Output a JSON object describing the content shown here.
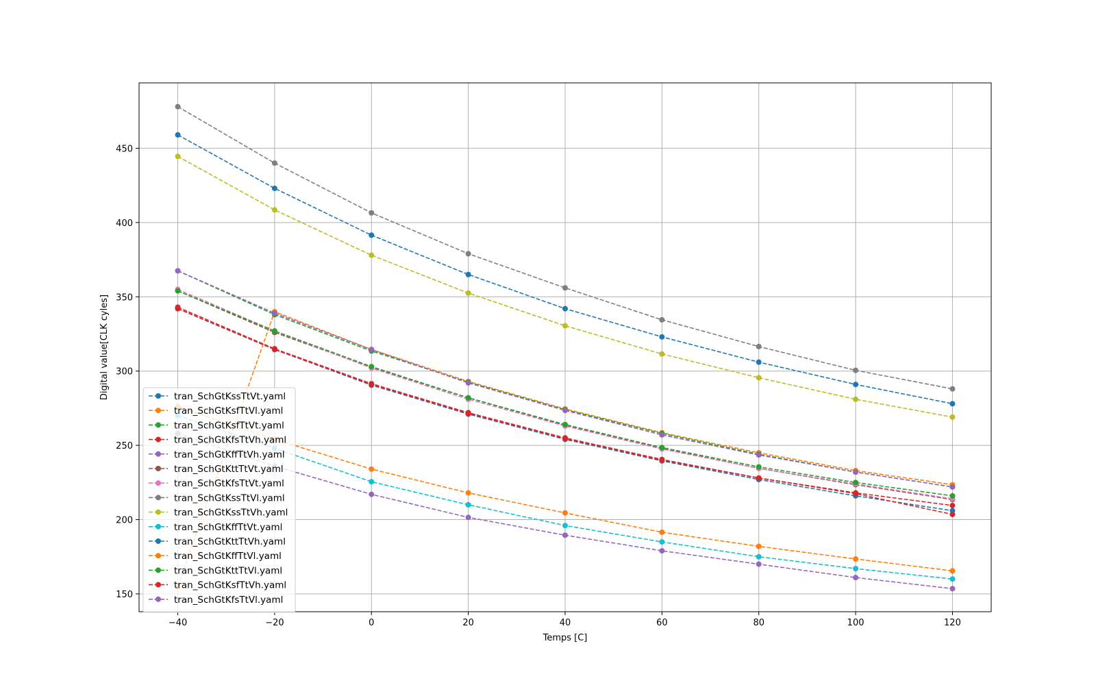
{
  "chart_data": {
    "type": "line",
    "title": "",
    "xlabel": "Temps [C]",
    "ylabel": "Digital value[CLK cyles]",
    "x": [
      -40,
      -20,
      0,
      20,
      40,
      60,
      80,
      100,
      120
    ],
    "xlim": [
      -48,
      128
    ],
    "ylim": [
      138,
      494
    ],
    "xticks": [
      -40,
      -20,
      0,
      20,
      40,
      60,
      80,
      100,
      120
    ],
    "xtick_labels": [
      "−40",
      "−20",
      "0",
      "20",
      "40",
      "60",
      "80",
      "100",
      "120"
    ],
    "yticks": [
      150,
      200,
      250,
      300,
      350,
      400,
      450
    ],
    "ytick_labels": [
      "150",
      "200",
      "250",
      "300",
      "350",
      "400",
      "450"
    ],
    "grid": true,
    "legend_position": "lower-left",
    "line_style": "dashed",
    "marker": "circle",
    "series": [
      {
        "name": "tran_SchGtKssTtVt.yaml",
        "color": "#1f77b4",
        "values": [
          459,
          423,
          391.5,
          365,
          342,
          323,
          306,
          291,
          278
        ]
      },
      {
        "name": "tran_SchGtKsfTtVl.yaml",
        "color": "#ff7f0e",
        "values": [
          155,
          340,
          314.5,
          293,
          274.5,
          258.5,
          245,
          233,
          223.5
        ]
      },
      {
        "name": "tran_SchGtKsfTtVt.yaml",
        "color": "#2ca02c",
        "values": [
          367.5,
          338,
          313.5,
          292.5,
          274,
          258,
          244,
          232,
          222
        ]
      },
      {
        "name": "tran_SchGtKfsTtVh.yaml",
        "color": "#d62728",
        "values": [
          343,
          315,
          291.5,
          272,
          255,
          240.5,
          228,
          218,
          209.5
        ]
      },
      {
        "name": "tran_SchGtKffTtVh.yaml",
        "color": "#9467bd",
        "values": [
          367.5,
          339,
          314.5,
          292,
          273.5,
          257,
          243.5,
          232,
          222
        ]
      },
      {
        "name": "tran_SchGtKttTtVt.yaml",
        "color": "#8c564b",
        "values": [
          354,
          326,
          302.5,
          282,
          263.5,
          248,
          234.5,
          223.5,
          213.5
        ]
      },
      {
        "name": "tran_SchGtKfsTtVt.yaml",
        "color": "#e377c2",
        "values": [
          355,
          327,
          302,
          281,
          263,
          247.5,
          234.5,
          224,
          214
        ]
      },
      {
        "name": "tran_SchGtKssTtVl.yaml",
        "color": "#7f7f7f",
        "values": [
          478,
          440,
          406.5,
          379,
          356,
          334.5,
          316.5,
          300.5,
          288
        ]
      },
      {
        "name": "tran_SchGtKssTtVh.yaml",
        "color": "#bcbd22",
        "values": [
          444.5,
          408.5,
          378,
          352.5,
          330.5,
          311.5,
          295.5,
          281,
          269
        ]
      },
      {
        "name": "tran_SchGtKffTtVt.yaml",
        "color": "#17becf",
        "values": [
          270,
          248,
          225.5,
          210,
          196,
          185,
          175,
          167,
          160
        ]
      },
      {
        "name": "tran_SchGtKttTtVh.yaml",
        "color": "#1f77b4",
        "values": [
          342,
          314.5,
          290.5,
          271,
          254,
          239.5,
          227,
          216,
          206
        ]
      },
      {
        "name": "tran_SchGtKffTtVl.yaml",
        "color": "#ff7f0e",
        "values": [
          276,
          254,
          234,
          218,
          204.5,
          191.5,
          182,
          173.5,
          165.5
        ]
      },
      {
        "name": "tran_SchGtKttTtVl.yaml",
        "color": "#2ca02c",
        "values": [
          354,
          327,
          303,
          282,
          264,
          248.5,
          235.5,
          225,
          216
        ]
      },
      {
        "name": "tran_SchGtKsfTtVh.yaml",
        "color": "#d62728",
        "values": [
          342,
          314.5,
          291,
          271.5,
          254.5,
          240,
          228,
          217.5,
          203.5
        ]
      },
      {
        "name": "tran_SchGtKfsTtVl.yaml",
        "color": "#9467bd",
        "values": [
          258,
          236,
          217,
          201.5,
          189.5,
          179,
          170,
          161,
          153.5
        ]
      }
    ]
  }
}
